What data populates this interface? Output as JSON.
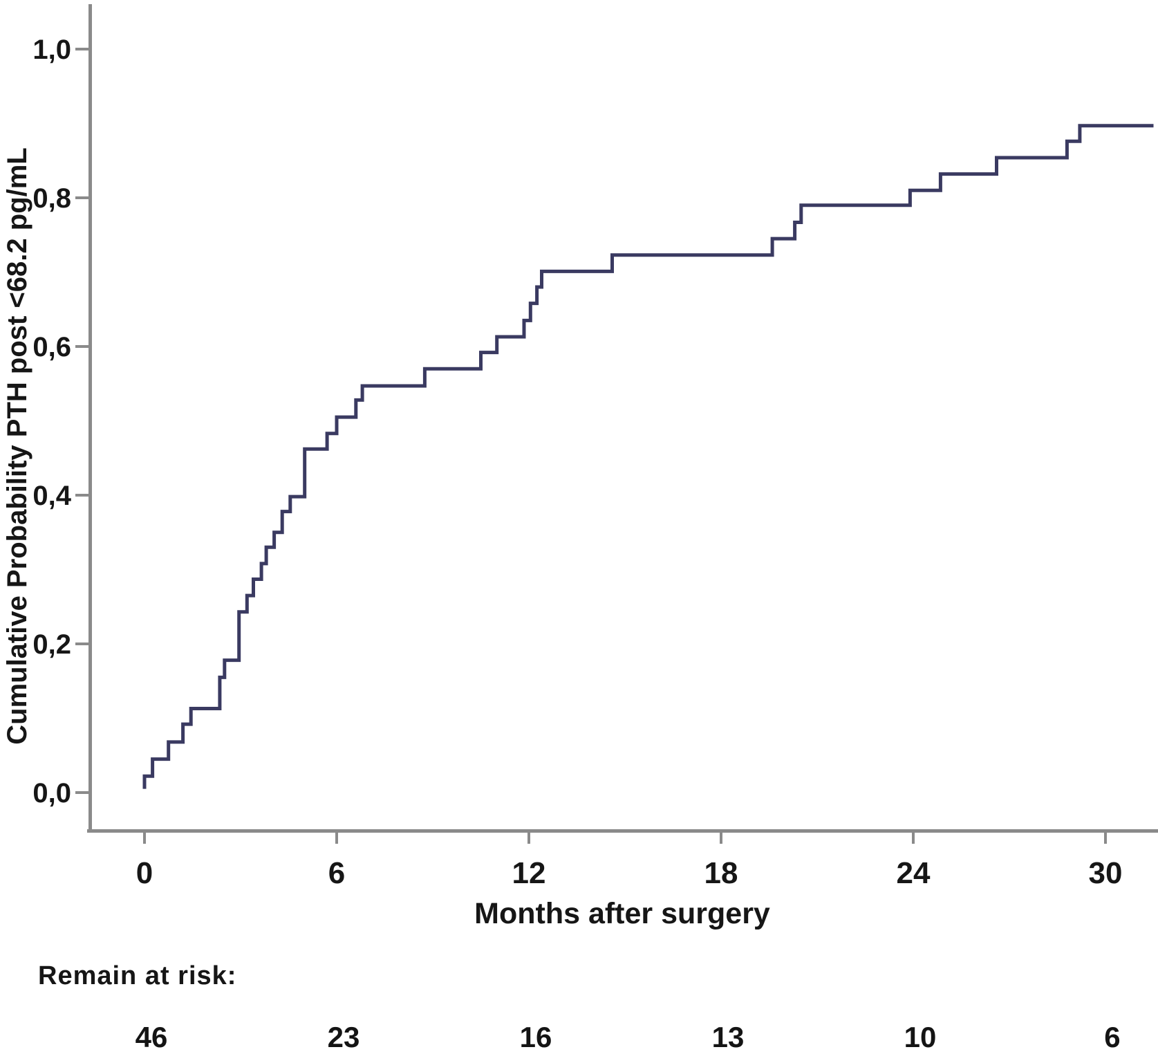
{
  "figure": {
    "x_axis_label": "Months after surgery",
    "y_axis_label": "Cumulative Probability PTH post <68.2 pg/mL",
    "risk_label": "Remain at risk:"
  },
  "colors": {
    "curve": "#3a3a61",
    "axis": "#8a8a8a",
    "text": "#161616"
  },
  "chart_data": {
    "type": "line",
    "subtype": "kaplan-meier-cumulative-incidence-step",
    "title": "",
    "xlabel": "Months after surgery",
    "ylabel": "Cumulative Probability PTH post <68.2 pg/mL",
    "xlim": [
      -1.75,
      31.6
    ],
    "ylim": [
      -0.05,
      1.06
    ],
    "x_ticks": [
      0,
      6,
      12,
      18,
      24,
      30
    ],
    "y_tick_values": [
      0.0,
      0.2,
      0.4,
      0.6,
      0.8,
      1.0
    ],
    "y_tick_labels": [
      "0,0",
      "0,2",
      "0,4",
      "0,6",
      "0,8",
      "1,0"
    ],
    "grid": false,
    "legend": false,
    "curve_start": {
      "t": 0.0,
      "p": 0.005
    },
    "curve_end_t": 31.5,
    "steps": [
      [
        0.0,
        0.022
      ],
      [
        0.25,
        0.045
      ],
      [
        0.75,
        0.068
      ],
      [
        1.2,
        0.092
      ],
      [
        1.45,
        0.113
      ],
      [
        2.35,
        0.155
      ],
      [
        2.5,
        0.178
      ],
      [
        2.95,
        0.243
      ],
      [
        3.2,
        0.265
      ],
      [
        3.4,
        0.287
      ],
      [
        3.65,
        0.308
      ],
      [
        3.8,
        0.33
      ],
      [
        4.05,
        0.35
      ],
      [
        4.3,
        0.378
      ],
      [
        4.55,
        0.398
      ],
      [
        5.0,
        0.462
      ],
      [
        5.7,
        0.483
      ],
      [
        6.0,
        0.505
      ],
      [
        6.6,
        0.528
      ],
      [
        6.8,
        0.547
      ],
      [
        8.75,
        0.57
      ],
      [
        10.5,
        0.592
      ],
      [
        11.0,
        0.613
      ],
      [
        11.85,
        0.635
      ],
      [
        12.05,
        0.658
      ],
      [
        12.25,
        0.68
      ],
      [
        12.4,
        0.701
      ],
      [
        14.6,
        0.723
      ],
      [
        19.6,
        0.745
      ],
      [
        20.3,
        0.767
      ],
      [
        20.5,
        0.79
      ],
      [
        23.9,
        0.81
      ],
      [
        24.85,
        0.832
      ],
      [
        26.6,
        0.854
      ],
      [
        28.8,
        0.876
      ],
      [
        29.2,
        0.897
      ]
    ],
    "at_risk": {
      "label": "Remain at risk:",
      "times": [
        0,
        6,
        12,
        18,
        24,
        30
      ],
      "counts": [
        "46",
        "23",
        "16",
        "13",
        "10",
        "6"
      ]
    }
  }
}
